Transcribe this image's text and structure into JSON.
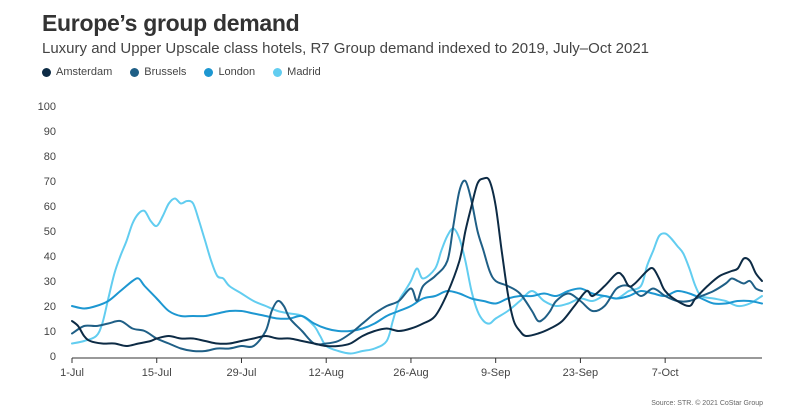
{
  "title": "Europe’s group demand",
  "subtitle": "Luxury and Upper Upscale class hotels, R7 Group demand indexed to 2019, July–Oct 2021",
  "source": "Source: STR. © 2021 CoStar Group",
  "chart_data": {
    "type": "line",
    "title": "Europe’s group demand",
    "subtitle": "Luxury and Upper Upscale class hotels, R7 Group demand indexed to 2019, July–Oct 2021",
    "xlabel": "",
    "ylabel": "",
    "ylim": [
      0,
      100
    ],
    "yticks": [
      0,
      10,
      20,
      30,
      40,
      50,
      60,
      70,
      80,
      90,
      100
    ],
    "xticks": [
      "1-Jul",
      "15-Jul",
      "29-Jul",
      "12-Aug",
      "26-Aug",
      "9-Sep",
      "23-Sep",
      "7-Oct"
    ],
    "x_start": "2021-07-01",
    "legend_position": "top-left",
    "grid": false,
    "series": [
      {
        "name": "Amsterdam",
        "color": "#0d2b45",
        "points": [
          [
            0,
            14
          ],
          [
            1,
            12
          ],
          [
            2,
            8
          ],
          [
            3,
            6
          ],
          [
            5,
            5
          ],
          [
            7,
            5
          ],
          [
            9,
            4
          ],
          [
            11,
            5
          ],
          [
            13,
            6
          ],
          [
            14,
            7
          ],
          [
            16,
            8
          ],
          [
            18,
            7
          ],
          [
            20,
            7
          ],
          [
            22,
            6
          ],
          [
            24,
            5
          ],
          [
            26,
            5
          ],
          [
            28,
            6
          ],
          [
            30,
            7
          ],
          [
            32,
            8
          ],
          [
            34,
            7
          ],
          [
            36,
            7
          ],
          [
            38,
            6
          ],
          [
            40,
            5
          ],
          [
            42,
            4
          ],
          [
            44,
            4
          ],
          [
            46,
            5
          ],
          [
            48,
            8
          ],
          [
            50,
            10
          ],
          [
            52,
            11
          ],
          [
            54,
            10
          ],
          [
            56,
            11
          ],
          [
            58,
            13
          ],
          [
            60,
            16
          ],
          [
            62,
            25
          ],
          [
            64,
            38
          ],
          [
            65,
            50
          ],
          [
            66,
            60
          ],
          [
            67,
            69
          ],
          [
            68,
            71
          ],
          [
            69,
            70
          ],
          [
            70,
            60
          ],
          [
            71,
            42
          ],
          [
            72,
            25
          ],
          [
            73,
            14
          ],
          [
            74,
            10
          ],
          [
            75,
            8
          ],
          [
            77,
            9
          ],
          [
            79,
            11
          ],
          [
            81,
            14
          ],
          [
            83,
            20
          ],
          [
            85,
            26
          ],
          [
            86,
            24
          ],
          [
            88,
            28
          ],
          [
            90,
            33
          ],
          [
            91,
            32
          ],
          [
            92,
            28
          ],
          [
            93,
            29
          ],
          [
            95,
            34
          ],
          [
            96,
            35
          ],
          [
            97,
            31
          ],
          [
            98,
            26
          ],
          [
            100,
            22
          ],
          [
            102,
            20
          ],
          [
            103,
            23
          ],
          [
            105,
            28
          ],
          [
            107,
            32
          ],
          [
            109,
            34
          ],
          [
            110,
            35
          ],
          [
            111,
            39
          ],
          [
            112,
            38
          ],
          [
            113,
            33
          ],
          [
            114,
            30
          ]
        ]
      },
      {
        "name": "Brussels",
        "color": "#1f5f86",
        "points": [
          [
            0,
            9
          ],
          [
            2,
            12
          ],
          [
            4,
            12
          ],
          [
            6,
            13
          ],
          [
            8,
            14
          ],
          [
            10,
            11
          ],
          [
            12,
            10
          ],
          [
            14,
            7
          ],
          [
            16,
            5
          ],
          [
            18,
            3
          ],
          [
            20,
            2
          ],
          [
            22,
            2
          ],
          [
            24,
            3
          ],
          [
            26,
            3
          ],
          [
            28,
            4
          ],
          [
            30,
            4
          ],
          [
            32,
            10
          ],
          [
            33,
            18
          ],
          [
            34,
            22
          ],
          [
            35,
            20
          ],
          [
            36,
            15
          ],
          [
            38,
            10
          ],
          [
            40,
            5
          ],
          [
            42,
            5
          ],
          [
            44,
            6
          ],
          [
            46,
            9
          ],
          [
            48,
            13
          ],
          [
            50,
            17
          ],
          [
            52,
            20
          ],
          [
            54,
            22
          ],
          [
            56,
            27
          ],
          [
            57,
            22
          ],
          [
            58,
            28
          ],
          [
            60,
            32
          ],
          [
            62,
            38
          ],
          [
            63,
            52
          ],
          [
            64,
            66
          ],
          [
            65,
            70
          ],
          [
            66,
            62
          ],
          [
            67,
            50
          ],
          [
            68,
            42
          ],
          [
            69,
            34
          ],
          [
            70,
            30
          ],
          [
            72,
            28
          ],
          [
            74,
            25
          ],
          [
            76,
            18
          ],
          [
            77,
            14
          ],
          [
            78,
            15
          ],
          [
            79,
            18
          ],
          [
            80,
            22
          ],
          [
            82,
            25
          ],
          [
            84,
            22
          ],
          [
            86,
            18
          ],
          [
            88,
            20
          ],
          [
            90,
            27
          ],
          [
            92,
            28
          ],
          [
            94,
            24
          ],
          [
            96,
            27
          ],
          [
            98,
            24
          ],
          [
            100,
            22
          ],
          [
            102,
            22
          ],
          [
            104,
            24
          ],
          [
            106,
            26
          ],
          [
            108,
            29
          ],
          [
            109,
            31
          ],
          [
            110,
            30
          ],
          [
            111,
            29
          ],
          [
            112,
            30
          ],
          [
            113,
            27
          ],
          [
            114,
            26
          ]
        ]
      },
      {
        "name": "London",
        "color": "#1d97d1",
        "points": [
          [
            0,
            20
          ],
          [
            2,
            19
          ],
          [
            4,
            20
          ],
          [
            6,
            22
          ],
          [
            8,
            26
          ],
          [
            10,
            30
          ],
          [
            11,
            31
          ],
          [
            12,
            28
          ],
          [
            14,
            23
          ],
          [
            16,
            18
          ],
          [
            18,
            16
          ],
          [
            20,
            16
          ],
          [
            22,
            16
          ],
          [
            24,
            17
          ],
          [
            26,
            18
          ],
          [
            28,
            18
          ],
          [
            30,
            17
          ],
          [
            32,
            16
          ],
          [
            34,
            15
          ],
          [
            36,
            15
          ],
          [
            38,
            16
          ],
          [
            40,
            13
          ],
          [
            42,
            11
          ],
          [
            44,
            10
          ],
          [
            46,
            10
          ],
          [
            48,
            11
          ],
          [
            50,
            13
          ],
          [
            52,
            16
          ],
          [
            54,
            18
          ],
          [
            56,
            20
          ],
          [
            58,
            23
          ],
          [
            60,
            24
          ],
          [
            62,
            26
          ],
          [
            64,
            25
          ],
          [
            66,
            23
          ],
          [
            68,
            22
          ],
          [
            70,
            21
          ],
          [
            72,
            23
          ],
          [
            74,
            24
          ],
          [
            76,
            24
          ],
          [
            78,
            25
          ],
          [
            80,
            24
          ],
          [
            82,
            26
          ],
          [
            84,
            27
          ],
          [
            86,
            25
          ],
          [
            88,
            24
          ],
          [
            90,
            23
          ],
          [
            92,
            24
          ],
          [
            94,
            26
          ],
          [
            96,
            25
          ],
          [
            98,
            24
          ],
          [
            100,
            26
          ],
          [
            102,
            25
          ],
          [
            104,
            23
          ],
          [
            106,
            21
          ],
          [
            108,
            21
          ],
          [
            110,
            22
          ],
          [
            112,
            22
          ],
          [
            114,
            21
          ]
        ]
      },
      {
        "name": "Madrid",
        "color": "#62cdf0",
        "points": [
          [
            0,
            5
          ],
          [
            2,
            6
          ],
          [
            4,
            8
          ],
          [
            5,
            13
          ],
          [
            6,
            23
          ],
          [
            7,
            33
          ],
          [
            8,
            40
          ],
          [
            9,
            46
          ],
          [
            10,
            53
          ],
          [
            11,
            57
          ],
          [
            12,
            58
          ],
          [
            13,
            54
          ],
          [
            14,
            52
          ],
          [
            15,
            56
          ],
          [
            16,
            61
          ],
          [
            17,
            63
          ],
          [
            18,
            61
          ],
          [
            19,
            62
          ],
          [
            20,
            61
          ],
          [
            21,
            54
          ],
          [
            22,
            46
          ],
          [
            23,
            38
          ],
          [
            24,
            32
          ],
          [
            25,
            31
          ],
          [
            26,
            28
          ],
          [
            28,
            25
          ],
          [
            30,
            22
          ],
          [
            32,
            20
          ],
          [
            34,
            18
          ],
          [
            36,
            17
          ],
          [
            38,
            16
          ],
          [
            40,
            12
          ],
          [
            41,
            8
          ],
          [
            42,
            4
          ],
          [
            44,
            2
          ],
          [
            46,
            1
          ],
          [
            48,
            2
          ],
          [
            50,
            3
          ],
          [
            52,
            6
          ],
          [
            53,
            14
          ],
          [
            54,
            22
          ],
          [
            55,
            26
          ],
          [
            56,
            30
          ],
          [
            57,
            35
          ],
          [
            58,
            31
          ],
          [
            60,
            35
          ],
          [
            61,
            42
          ],
          [
            62,
            48
          ],
          [
            63,
            51
          ],
          [
            64,
            47
          ],
          [
            65,
            38
          ],
          [
            66,
            26
          ],
          [
            67,
            18
          ],
          [
            68,
            14
          ],
          [
            69,
            13
          ],
          [
            70,
            15
          ],
          [
            72,
            18
          ],
          [
            74,
            22
          ],
          [
            76,
            26
          ],
          [
            78,
            22
          ],
          [
            80,
            20
          ],
          [
            82,
            21
          ],
          [
            84,
            23
          ],
          [
            86,
            22
          ],
          [
            88,
            24
          ],
          [
            90,
            23
          ],
          [
            92,
            26
          ],
          [
            94,
            28
          ],
          [
            95,
            36
          ],
          [
            96,
            42
          ],
          [
            97,
            48
          ],
          [
            98,
            49
          ],
          [
            99,
            47
          ],
          [
            100,
            44
          ],
          [
            101,
            41
          ],
          [
            102,
            35
          ],
          [
            103,
            28
          ],
          [
            104,
            24
          ],
          [
            106,
            23
          ],
          [
            108,
            22
          ],
          [
            110,
            20
          ],
          [
            112,
            21
          ],
          [
            114,
            24
          ]
        ]
      }
    ]
  }
}
